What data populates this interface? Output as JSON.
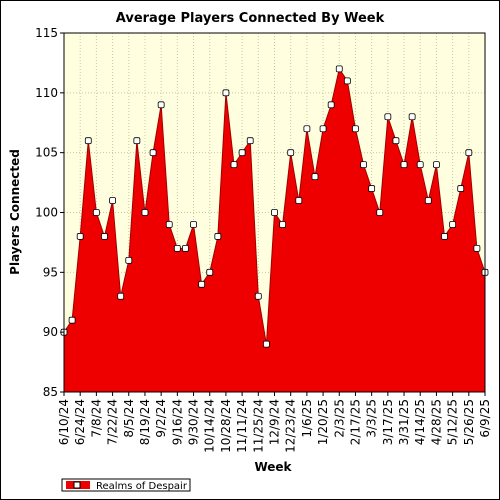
{
  "chart_data": {
    "type": "area",
    "title": "Average Players Connected By Week",
    "xlabel": "Week",
    "ylabel": "Players Connected",
    "ylim": [
      85,
      115
    ],
    "yticks": [
      85,
      90,
      95,
      100,
      105,
      110,
      115
    ],
    "grid": true,
    "legend_position": "bottom-left",
    "colors": {
      "fill": "#ee0000",
      "line": "#a00000",
      "plot_bg": "#ffffe0",
      "grid": "#c8c8a0",
      "marker_fill": "#ffffff"
    },
    "x": [
      "6/10/24",
      "6/17/24",
      "6/24/24",
      "7/1/24",
      "7/8/24",
      "7/15/24",
      "7/22/24",
      "7/29/24",
      "8/5/24",
      "8/12/24",
      "8/19/24",
      "8/26/24",
      "9/2/24",
      "9/9/24",
      "9/16/24",
      "9/23/24",
      "9/30/24",
      "10/7/24",
      "10/14/24",
      "10/21/24",
      "10/28/24",
      "11/4/24",
      "11/11/24",
      "11/18/24",
      "11/25/24",
      "12/2/24",
      "12/9/24",
      "12/16/24",
      "12/23/24",
      "12/30/24",
      "1/6/25",
      "1/13/25",
      "1/20/25",
      "1/27/25",
      "2/3/25",
      "2/10/25",
      "2/17/25",
      "2/24/25",
      "3/3/25",
      "3/10/25",
      "3/17/25",
      "3/24/25",
      "3/31/25",
      "4/7/25",
      "4/14/25",
      "4/21/25",
      "4/28/25",
      "5/5/25",
      "5/12/25",
      "5/19/25",
      "5/26/25",
      "6/2/25",
      "6/9/25"
    ],
    "xtick_labels": [
      "6/10/24",
      "6/24/24",
      "7/8/24",
      "7/22/24",
      "8/5/24",
      "8/19/24",
      "9/2/24",
      "9/16/24",
      "9/30/24",
      "10/14/24",
      "10/28/24",
      "11/11/24",
      "11/25/24",
      "12/9/24",
      "12/23/24",
      "1/6/25",
      "1/20/25",
      "2/3/25",
      "2/17/25",
      "3/3/25",
      "3/17/25",
      "3/31/25",
      "4/14/25",
      "4/28/25",
      "5/12/25",
      "5/26/25",
      "6/9/25"
    ],
    "series": [
      {
        "name": "Realms of Despair",
        "values": [
          90,
          91,
          98,
          106,
          100,
          98,
          101,
          93,
          96,
          106,
          100,
          105,
          109,
          99,
          97,
          97,
          99,
          94,
          95,
          98,
          110,
          104,
          105,
          106,
          93,
          89,
          100,
          99,
          105,
          101,
          107,
          103,
          107,
          109,
          112,
          111,
          107,
          104,
          102,
          100,
          108,
          106,
          104,
          108,
          104,
          101,
          104,
          98,
          99,
          102,
          105,
          97,
          95
        ]
      }
    ]
  }
}
